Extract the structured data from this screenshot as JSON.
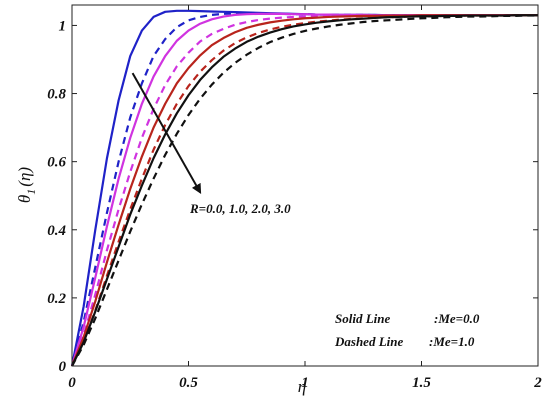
{
  "chart_data": {
    "type": "line",
    "xlabel": "η",
    "ylabel_main": "θ",
    "ylabel_sub": "1",
    "ylabel_arg": "(η)",
    "xlim": [
      0,
      2
    ],
    "ylim": [
      0,
      1.06
    ],
    "xticks": [
      {
        "value": 0,
        "label": "0"
      },
      {
        "value": 0.5,
        "label": "0.5"
      },
      {
        "value": 1,
        "label": "1"
      },
      {
        "value": 1.5,
        "label": "1.5"
      },
      {
        "value": 2,
        "label": "2"
      }
    ],
    "yticks": [
      {
        "value": 0,
        "label": "0"
      },
      {
        "value": 0.2,
        "label": "0.2"
      },
      {
        "value": 0.4,
        "label": "0.4"
      },
      {
        "value": 0.6,
        "label": "0.6"
      },
      {
        "value": 0.8,
        "label": "0.8"
      },
      {
        "value": 1,
        "label": "1"
      }
    ],
    "grid": false,
    "x": [
      0,
      0.05,
      0.1,
      0.15,
      0.2,
      0.25,
      0.3,
      0.35,
      0.4,
      0.45,
      0.5,
      0.55,
      0.6,
      0.65,
      0.7,
      0.75,
      0.8,
      0.85,
      0.9,
      0.95,
      1.0,
      1.05,
      1.1,
      1.15,
      1.2,
      1.25,
      1.3,
      1.35,
      1.4,
      1.45,
      1.5,
      1.55,
      1.6,
      1.65,
      1.7,
      1.75,
      1.8,
      1.85,
      1.9,
      1.95,
      2.0
    ],
    "series": [
      {
        "color": "#1f22c8",
        "style": "solid",
        "values": [
          0,
          0.175,
          0.4,
          0.61,
          0.78,
          0.91,
          0.985,
          1.025,
          1.04,
          1.043,
          1.043,
          1.042,
          1.041,
          1.04,
          1.039,
          1.038,
          1.037,
          1.036,
          1.035,
          1.034,
          1.033,
          1.032,
          1.032,
          1.031,
          1.031,
          1.031,
          1.031,
          1.03,
          1.03,
          1.03,
          1.03,
          1.03,
          1.03,
          1.03,
          1.03,
          1.03,
          1.03,
          1.03,
          1.03,
          1.03,
          1.03
        ]
      },
      {
        "color": "#1f22c8",
        "style": "dashed",
        "values": [
          0,
          0.13,
          0.29,
          0.45,
          0.6,
          0.73,
          0.83,
          0.91,
          0.96,
          0.995,
          1.015,
          1.025,
          1.031,
          1.034,
          1.035,
          1.035,
          1.035,
          1.034,
          1.034,
          1.033,
          1.033,
          1.032,
          1.032,
          1.031,
          1.031,
          1.031,
          1.03,
          1.03,
          1.03,
          1.03,
          1.03,
          1.03,
          1.03,
          1.03,
          1.03,
          1.03,
          1.03,
          1.03,
          1.03,
          1.03,
          1.03
        ]
      },
      {
        "color": "#d033e0",
        "style": "solid",
        "values": [
          0,
          0.115,
          0.26,
          0.41,
          0.55,
          0.67,
          0.77,
          0.85,
          0.91,
          0.955,
          0.985,
          1.005,
          1.018,
          1.026,
          1.031,
          1.033,
          1.034,
          1.034,
          1.034,
          1.033,
          1.033,
          1.032,
          1.032,
          1.031,
          1.031,
          1.031,
          1.03,
          1.03,
          1.03,
          1.03,
          1.03,
          1.03,
          1.03,
          1.03,
          1.03,
          1.03,
          1.03,
          1.03,
          1.03,
          1.03,
          1.03
        ]
      },
      {
        "color": "#d033e0",
        "style": "dashed",
        "values": [
          0,
          0.09,
          0.21,
          0.34,
          0.46,
          0.57,
          0.67,
          0.755,
          0.825,
          0.88,
          0.92,
          0.953,
          0.975,
          0.99,
          1.002,
          1.01,
          1.016,
          1.02,
          1.023,
          1.025,
          1.026,
          1.027,
          1.028,
          1.028,
          1.029,
          1.029,
          1.029,
          1.03,
          1.03,
          1.03,
          1.03,
          1.03,
          1.03,
          1.03,
          1.03,
          1.03,
          1.03,
          1.03,
          1.03,
          1.03,
          1.03
        ]
      },
      {
        "color": "#b8241c",
        "style": "solid",
        "values": [
          0,
          0.085,
          0.19,
          0.305,
          0.415,
          0.52,
          0.615,
          0.7,
          0.77,
          0.83,
          0.875,
          0.912,
          0.942,
          0.963,
          0.98,
          0.993,
          1.002,
          1.009,
          1.014,
          1.018,
          1.021,
          1.023,
          1.025,
          1.026,
          1.027,
          1.028,
          1.028,
          1.029,
          1.029,
          1.029,
          1.03,
          1.03,
          1.03,
          1.03,
          1.03,
          1.03,
          1.03,
          1.03,
          1.03,
          1.03,
          1.03
        ]
      },
      {
        "color": "#b8241c",
        "style": "dashed",
        "values": [
          0,
          0.072,
          0.163,
          0.265,
          0.365,
          0.46,
          0.55,
          0.635,
          0.708,
          0.77,
          0.822,
          0.864,
          0.898,
          0.926,
          0.948,
          0.965,
          0.978,
          0.988,
          0.996,
          1.002,
          1.007,
          1.011,
          1.014,
          1.017,
          1.019,
          1.021,
          1.023,
          1.024,
          1.025,
          1.026,
          1.027,
          1.027,
          1.028,
          1.028,
          1.029,
          1.029,
          1.029,
          1.029,
          1.03,
          1.03,
          1.03
        ]
      },
      {
        "color": "#111111",
        "style": "solid",
        "values": [
          0,
          0.07,
          0.16,
          0.255,
          0.35,
          0.445,
          0.53,
          0.61,
          0.68,
          0.742,
          0.795,
          0.84,
          0.877,
          0.908,
          0.932,
          0.952,
          0.967,
          0.979,
          0.989,
          0.997,
          1.003,
          1.008,
          1.012,
          1.015,
          1.018,
          1.02,
          1.022,
          1.024,
          1.025,
          1.026,
          1.027,
          1.027,
          1.028,
          1.028,
          1.029,
          1.029,
          1.029,
          1.029,
          1.03,
          1.03,
          1.03
        ]
      },
      {
        "color": "#111111",
        "style": "dashed",
        "values": [
          0,
          0.062,
          0.14,
          0.225,
          0.31,
          0.395,
          0.475,
          0.55,
          0.62,
          0.682,
          0.737,
          0.785,
          0.826,
          0.861,
          0.89,
          0.914,
          0.934,
          0.951,
          0.964,
          0.975,
          0.984,
          0.991,
          0.997,
          1.002,
          1.006,
          1.01,
          1.013,
          1.015,
          1.017,
          1.019,
          1.021,
          1.022,
          1.024,
          1.025,
          1.026,
          1.026,
          1.027,
          1.028,
          1.028,
          1.029,
          1.029
        ]
      }
    ],
    "annotations": {
      "arrow_label": "R=0.0, 1.0, 2.0, 3.0",
      "arrow_from": {
        "x": 0.26,
        "y": 0.86
      },
      "arrow_to": {
        "x": 0.55,
        "y": 0.51
      },
      "legend_solid_label": "Solid Line",
      "legend_solid_value": ":Me=0.0",
      "legend_dashed_label": "Dashed Line",
      "legend_dashed_value": ":Me=1.0",
      "legend_placement": "bottom-right"
    }
  }
}
